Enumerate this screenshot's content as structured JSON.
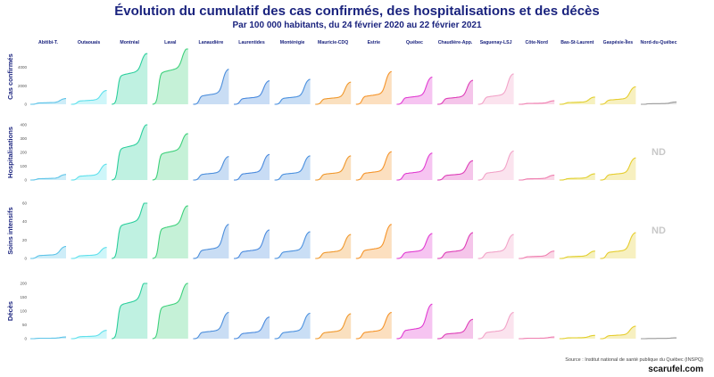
{
  "page": {
    "title": "Évolution du cumulatif des cas confirmés, des hospitalisations et des décès",
    "subtitle": "Par 100 000 habitants, du 24 février 2020 au 22 février 2021",
    "source": "Source : Institut national de santé publique du Québec (INSPQ)",
    "brand": "scarufel.com"
  },
  "chart_data": {
    "type": "area",
    "layout": "small-multiples",
    "x_range": [
      "2020-02-24",
      "2021-02-22"
    ],
    "regions": [
      {
        "name": "Abitibi-T.",
        "color": "#5ec4e8"
      },
      {
        "name": "Outaouais",
        "color": "#5ee0ec"
      },
      {
        "name": "Montréal",
        "color": "#2ccf9d"
      },
      {
        "name": "Laval",
        "color": "#3fd17c"
      },
      {
        "name": "Lanaudière",
        "color": "#4d8fdc"
      },
      {
        "name": "Laurentides",
        "color": "#4a8ade"
      },
      {
        "name": "Montérégie",
        "color": "#4b91df"
      },
      {
        "name": "Mauricie-CDQ",
        "color": "#f0982c"
      },
      {
        "name": "Estrie",
        "color": "#f5942a"
      },
      {
        "name": "Québec",
        "color": "#e13cd2"
      },
      {
        "name": "Chaudière-App.",
        "color": "#de3fb8"
      },
      {
        "name": "Saguenay-LSJ",
        "color": "#f2a3c8"
      },
      {
        "name": "Côte-Nord",
        "color": "#ef7fb0"
      },
      {
        "name": "Bas-St-Laurent",
        "color": "#e1cf2c"
      },
      {
        "name": "Gaspésie-Îles",
        "color": "#e6cd2e"
      },
      {
        "name": "Nord-du-Québec",
        "color": "#9a9a9a"
      }
    ],
    "rows": [
      {
        "label": "Cas confirmés",
        "ylim": [
          0,
          6000
        ],
        "ticks": [
          "0",
          "2000",
          "4000"
        ],
        "tick_values": [
          0,
          2000,
          4000
        ],
        "finals": [
          620,
          1500,
          5500,
          6050,
          3800,
          2550,
          2700,
          2400,
          3550,
          2950,
          2600,
          3300,
          380,
          780,
          1900,
          250
        ],
        "nd": [
          false,
          false,
          false,
          false,
          false,
          false,
          false,
          false,
          false,
          false,
          false,
          false,
          false,
          false,
          false,
          false
        ]
      },
      {
        "label": "Hospitalisations",
        "ylim": [
          0,
          400
        ],
        "ticks": [
          "0",
          "100",
          "200",
          "300",
          "400"
        ],
        "tick_values": [
          0,
          100,
          200,
          300,
          400
        ],
        "finals": [
          40,
          115,
          400,
          335,
          170,
          185,
          175,
          175,
          205,
          195,
          140,
          210,
          35,
          45,
          160,
          null
        ],
        "nd": [
          false,
          false,
          false,
          false,
          false,
          false,
          false,
          false,
          false,
          false,
          false,
          false,
          false,
          false,
          false,
          true
        ],
        "nd_label": "ND"
      },
      {
        "label": "Soins intensifs",
        "ylim": [
          0,
          60
        ],
        "ticks": [
          "0",
          "20",
          "40",
          "60"
        ],
        "tick_values": [
          0,
          20,
          40,
          60
        ],
        "finals": [
          13,
          12,
          63,
          57,
          37,
          31,
          29,
          26,
          37,
          27,
          28,
          26,
          8,
          8,
          28,
          null
        ],
        "nd": [
          false,
          false,
          false,
          false,
          false,
          false,
          false,
          false,
          false,
          false,
          false,
          false,
          false,
          false,
          false,
          true
        ],
        "nd_label": "ND"
      },
      {
        "label": "Décès",
        "ylim": [
          0,
          200
        ],
        "ticks": [
          "0",
          "50",
          "100",
          "150",
          "200"
        ],
        "tick_values": [
          0,
          50,
          100,
          150,
          200
        ],
        "finals": [
          6,
          30,
          215,
          200,
          95,
          78,
          92,
          90,
          95,
          125,
          70,
          95,
          6,
          12,
          45,
          3
        ],
        "nd": [
          false,
          false,
          false,
          false,
          false,
          false,
          false,
          false,
          false,
          false,
          false,
          false,
          false,
          false,
          false,
          false
        ]
      }
    ]
  }
}
